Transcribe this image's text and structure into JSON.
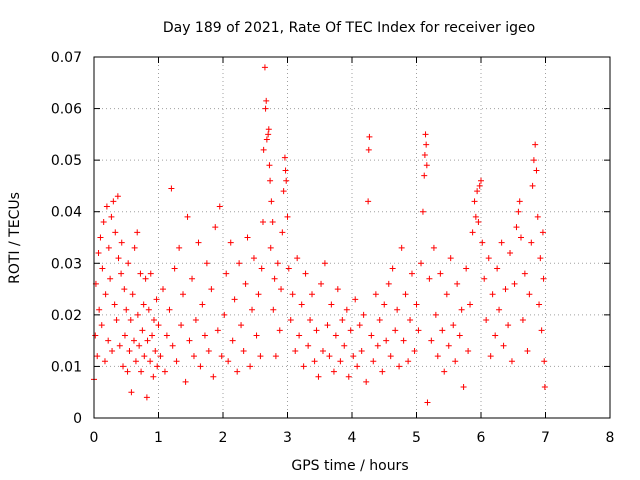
{
  "chart_data": {
    "type": "scatter",
    "title": "Day 189 of 2021, Rate Of TEC Index for receiver igeo",
    "xlabel": "GPS time / hours",
    "ylabel": "ROTI / TECUs",
    "xlim": [
      0,
      8
    ],
    "ylim": [
      0,
      0.07
    ],
    "xticks": [
      0,
      1,
      2,
      3,
      4,
      5,
      6,
      7,
      8
    ],
    "xtick_labels": [
      "0",
      "1",
      "2",
      "3",
      "4",
      "5",
      "6",
      "7",
      "8"
    ],
    "yticks": [
      0,
      0.01,
      0.02,
      0.03,
      0.04,
      0.05,
      0.06,
      0.07
    ],
    "ytick_labels": [
      "0",
      "0.01",
      "0.02",
      "0.03",
      "0.04",
      "0.05",
      "0.06",
      "0.07"
    ],
    "grid": true,
    "marker": "plus",
    "color": "#ff0000",
    "series": [
      {
        "points": [
          [
            0.0,
            0.0075
          ],
          [
            0.02,
            0.016
          ],
          [
            0.03,
            0.026
          ],
          [
            0.05,
            0.012
          ],
          [
            0.07,
            0.032
          ],
          [
            0.08,
            0.021
          ],
          [
            0.1,
            0.035
          ],
          [
            0.12,
            0.018
          ],
          [
            0.13,
            0.029
          ],
          [
            0.15,
            0.038
          ],
          [
            0.17,
            0.011
          ],
          [
            0.18,
            0.024
          ],
          [
            0.2,
            0.041
          ],
          [
            0.22,
            0.015
          ],
          [
            0.23,
            0.033
          ],
          [
            0.25,
            0.027
          ],
          [
            0.27,
            0.039
          ],
          [
            0.28,
            0.013
          ],
          [
            0.3,
            0.042
          ],
          [
            0.32,
            0.022
          ],
          [
            0.33,
            0.036
          ],
          [
            0.35,
            0.019
          ],
          [
            0.37,
            0.043
          ],
          [
            0.38,
            0.031
          ],
          [
            0.4,
            0.014
          ],
          [
            0.42,
            0.028
          ],
          [
            0.43,
            0.034
          ],
          [
            0.45,
            0.01
          ],
          [
            0.47,
            0.025
          ],
          [
            0.48,
            0.016
          ],
          [
            0.5,
            0.021
          ],
          [
            0.52,
            0.009
          ],
          [
            0.53,
            0.03
          ],
          [
            0.55,
            0.013
          ],
          [
            0.57,
            0.019
          ],
          [
            0.58,
            0.005
          ],
          [
            0.6,
            0.024
          ],
          [
            0.62,
            0.015
          ],
          [
            0.63,
            0.033
          ],
          [
            0.65,
            0.011
          ],
          [
            0.67,
            0.036
          ],
          [
            0.68,
            0.02
          ],
          [
            0.7,
            0.014
          ],
          [
            0.72,
            0.028
          ],
          [
            0.73,
            0.009
          ],
          [
            0.75,
            0.017
          ],
          [
            0.77,
            0.022
          ],
          [
            0.78,
            0.012
          ],
          [
            0.8,
            0.027
          ],
          [
            0.82,
            0.004
          ],
          [
            0.83,
            0.015
          ],
          [
            0.85,
            0.021
          ],
          [
            0.87,
            0.011
          ],
          [
            0.88,
            0.028
          ],
          [
            0.9,
            0.016
          ],
          [
            0.92,
            0.008
          ],
          [
            0.93,
            0.019
          ],
          [
            0.95,
            0.013
          ],
          [
            0.97,
            0.023
          ],
          [
            0.98,
            0.01
          ],
          [
            1.0,
            0.018
          ],
          [
            1.03,
            0.012
          ],
          [
            1.07,
            0.025
          ],
          [
            1.1,
            0.009
          ],
          [
            1.13,
            0.016
          ],
          [
            1.17,
            0.021
          ],
          [
            1.2,
            0.0445
          ],
          [
            1.22,
            0.014
          ],
          [
            1.25,
            0.029
          ],
          [
            1.28,
            0.011
          ],
          [
            1.32,
            0.033
          ],
          [
            1.35,
            0.018
          ],
          [
            1.38,
            0.024
          ],
          [
            1.42,
            0.007
          ],
          [
            1.45,
            0.039
          ],
          [
            1.48,
            0.015
          ],
          [
            1.52,
            0.027
          ],
          [
            1.55,
            0.012
          ],
          [
            1.58,
            0.019
          ],
          [
            1.62,
            0.034
          ],
          [
            1.65,
            0.01
          ],
          [
            1.68,
            0.022
          ],
          [
            1.72,
            0.016
          ],
          [
            1.75,
            0.03
          ],
          [
            1.78,
            0.013
          ],
          [
            1.82,
            0.025
          ],
          [
            1.85,
            0.008
          ],
          [
            1.88,
            0.037
          ],
          [
            1.92,
            0.017
          ],
          [
            1.95,
            0.041
          ],
          [
            1.98,
            0.012
          ],
          [
            2.02,
            0.02
          ],
          [
            2.05,
            0.028
          ],
          [
            2.08,
            0.011
          ],
          [
            2.12,
            0.034
          ],
          [
            2.15,
            0.015
          ],
          [
            2.18,
            0.023
          ],
          [
            2.22,
            0.009
          ],
          [
            2.25,
            0.03
          ],
          [
            2.28,
            0.018
          ],
          [
            2.32,
            0.013
          ],
          [
            2.35,
            0.026
          ],
          [
            2.38,
            0.035
          ],
          [
            2.42,
            0.01
          ],
          [
            2.45,
            0.021
          ],
          [
            2.48,
            0.031
          ],
          [
            2.52,
            0.016
          ],
          [
            2.55,
            0.024
          ],
          [
            2.58,
            0.012
          ],
          [
            2.6,
            0.029
          ],
          [
            2.62,
            0.038
          ],
          [
            2.63,
            0.052
          ],
          [
            2.65,
            0.068
          ],
          [
            2.66,
            0.06
          ],
          [
            2.67,
            0.0615
          ],
          [
            2.68,
            0.054
          ],
          [
            2.7,
            0.055
          ],
          [
            2.71,
            0.056
          ],
          [
            2.72,
            0.049
          ],
          [
            2.73,
            0.046
          ],
          [
            2.74,
            0.033
          ],
          [
            2.75,
            0.042
          ],
          [
            2.77,
            0.038
          ],
          [
            2.78,
            0.021
          ],
          [
            2.8,
            0.027
          ],
          [
            2.82,
            0.012
          ],
          [
            2.85,
            0.03
          ],
          [
            2.88,
            0.017
          ],
          [
            2.9,
            0.025
          ],
          [
            2.92,
            0.036
          ],
          [
            2.94,
            0.044
          ],
          [
            2.96,
            0.0505
          ],
          [
            2.97,
            0.048
          ],
          [
            2.98,
            0.046
          ],
          [
            3.0,
            0.039
          ],
          [
            3.02,
            0.029
          ],
          [
            3.05,
            0.019
          ],
          [
            3.08,
            0.024
          ],
          [
            3.12,
            0.013
          ],
          [
            3.15,
            0.031
          ],
          [
            3.18,
            0.016
          ],
          [
            3.22,
            0.022
          ],
          [
            3.25,
            0.01
          ],
          [
            3.28,
            0.028
          ],
          [
            3.32,
            0.014
          ],
          [
            3.35,
            0.019
          ],
          [
            3.38,
            0.024
          ],
          [
            3.42,
            0.011
          ],
          [
            3.45,
            0.017
          ],
          [
            3.48,
            0.008
          ],
          [
            3.52,
            0.026
          ],
          [
            3.55,
            0.013
          ],
          [
            3.58,
            0.03
          ],
          [
            3.62,
            0.018
          ],
          [
            3.65,
            0.012
          ],
          [
            3.68,
            0.022
          ],
          [
            3.72,
            0.009
          ],
          [
            3.75,
            0.016
          ],
          [
            3.78,
            0.025
          ],
          [
            3.82,
            0.011
          ],
          [
            3.85,
            0.019
          ],
          [
            3.88,
            0.014
          ],
          [
            3.92,
            0.021
          ],
          [
            3.95,
            0.008
          ],
          [
            3.98,
            0.017
          ],
          [
            4.02,
            0.012
          ],
          [
            4.05,
            0.023
          ],
          [
            4.08,
            0.01
          ],
          [
            4.12,
            0.018
          ],
          [
            4.15,
            0.013
          ],
          [
            4.18,
            0.02
          ],
          [
            4.22,
            0.007
          ],
          [
            4.25,
            0.042
          ],
          [
            4.26,
            0.052
          ],
          [
            4.27,
            0.0545
          ],
          [
            4.3,
            0.016
          ],
          [
            4.33,
            0.011
          ],
          [
            4.37,
            0.024
          ],
          [
            4.4,
            0.014
          ],
          [
            4.43,
            0.019
          ],
          [
            4.47,
            0.009
          ],
          [
            4.5,
            0.022
          ],
          [
            4.53,
            0.015
          ],
          [
            4.57,
            0.026
          ],
          [
            4.6,
            0.012
          ],
          [
            4.63,
            0.029
          ],
          [
            4.67,
            0.017
          ],
          [
            4.7,
            0.021
          ],
          [
            4.73,
            0.01
          ],
          [
            4.77,
            0.033
          ],
          [
            4.8,
            0.015
          ],
          [
            4.83,
            0.024
          ],
          [
            4.87,
            0.011
          ],
          [
            4.9,
            0.019
          ],
          [
            4.93,
            0.028
          ],
          [
            4.97,
            0.013
          ],
          [
            5.0,
            0.022
          ],
          [
            5.03,
            0.017
          ],
          [
            5.07,
            0.03
          ],
          [
            5.1,
            0.04
          ],
          [
            5.12,
            0.047
          ],
          [
            5.13,
            0.051
          ],
          [
            5.14,
            0.055
          ],
          [
            5.15,
            0.053
          ],
          [
            5.16,
            0.049
          ],
          [
            5.17,
            0.003
          ],
          [
            5.2,
            0.027
          ],
          [
            5.23,
            0.015
          ],
          [
            5.27,
            0.033
          ],
          [
            5.3,
            0.02
          ],
          [
            5.33,
            0.012
          ],
          [
            5.37,
            0.028
          ],
          [
            5.4,
            0.017
          ],
          [
            5.43,
            0.009
          ],
          [
            5.47,
            0.024
          ],
          [
            5.5,
            0.014
          ],
          [
            5.53,
            0.031
          ],
          [
            5.57,
            0.018
          ],
          [
            5.6,
            0.011
          ],
          [
            5.63,
            0.026
          ],
          [
            5.67,
            0.016
          ],
          [
            5.7,
            0.021
          ],
          [
            5.73,
            0.006
          ],
          [
            5.77,
            0.029
          ],
          [
            5.8,
            0.013
          ],
          [
            5.83,
            0.022
          ],
          [
            5.87,
            0.036
          ],
          [
            5.9,
            0.042
          ],
          [
            5.92,
            0.039
          ],
          [
            5.94,
            0.044
          ],
          [
            5.96,
            0.038
          ],
          [
            5.98,
            0.045
          ],
          [
            6.0,
            0.046
          ],
          [
            6.02,
            0.034
          ],
          [
            6.05,
            0.027
          ],
          [
            6.08,
            0.019
          ],
          [
            6.12,
            0.031
          ],
          [
            6.15,
            0.012
          ],
          [
            6.18,
            0.024
          ],
          [
            6.22,
            0.016
          ],
          [
            6.25,
            0.029
          ],
          [
            6.28,
            0.021
          ],
          [
            6.32,
            0.034
          ],
          [
            6.35,
            0.014
          ],
          [
            6.38,
            0.025
          ],
          [
            6.42,
            0.018
          ],
          [
            6.45,
            0.032
          ],
          [
            6.48,
            0.011
          ],
          [
            6.52,
            0.026
          ],
          [
            6.55,
            0.037
          ],
          [
            6.58,
            0.04
          ],
          [
            6.6,
            0.042
          ],
          [
            6.62,
            0.035
          ],
          [
            6.65,
            0.019
          ],
          [
            6.68,
            0.028
          ],
          [
            6.72,
            0.013
          ],
          [
            6.75,
            0.024
          ],
          [
            6.78,
            0.034
          ],
          [
            6.8,
            0.045
          ],
          [
            6.82,
            0.05
          ],
          [
            6.84,
            0.053
          ],
          [
            6.86,
            0.048
          ],
          [
            6.88,
            0.039
          ],
          [
            6.9,
            0.022
          ],
          [
            6.92,
            0.031
          ],
          [
            6.94,
            0.017
          ],
          [
            6.96,
            0.036
          ],
          [
            6.97,
            0.027
          ],
          [
            6.98,
            0.011
          ],
          [
            6.99,
            0.006
          ]
        ]
      }
    ]
  }
}
